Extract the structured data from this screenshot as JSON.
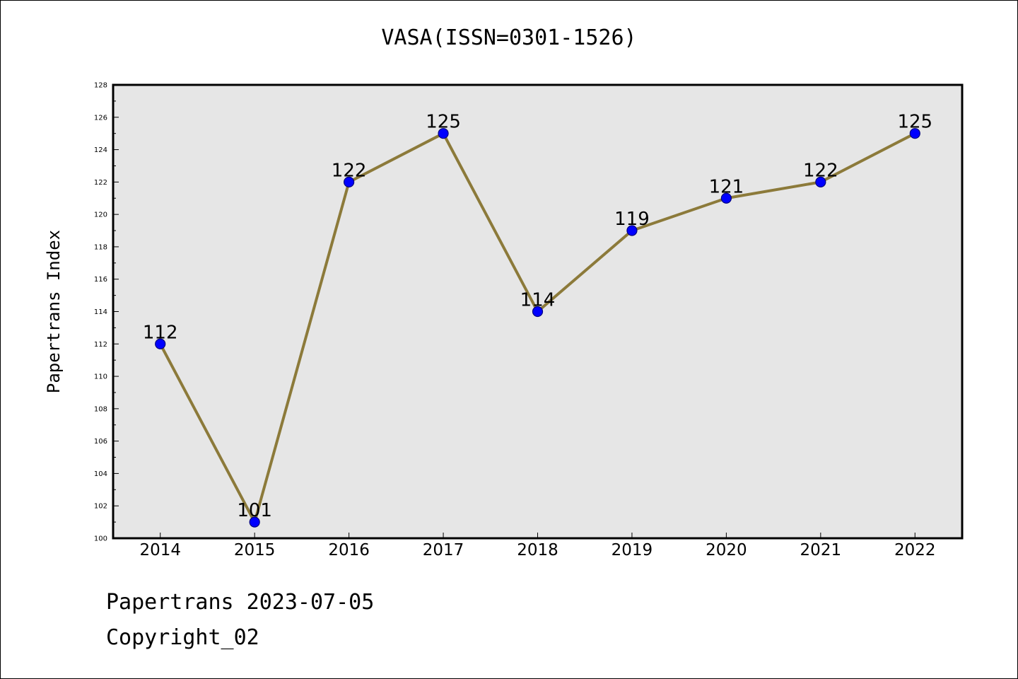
{
  "title": "VASA(ISSN=0301-1526)",
  "footer": {
    "line1": "Papertrans 2023-07-05",
    "line2": "Copyright_02"
  },
  "chart_data": {
    "type": "line",
    "title": "VASA(ISSN=0301-1526)",
    "xlabel": "",
    "ylabel": "Papertrans Index",
    "categories": [
      "2014",
      "2015",
      "2016",
      "2017",
      "2018",
      "2019",
      "2020",
      "2021",
      "2022"
    ],
    "series": [
      {
        "values": [
          112,
          101,
          122,
          125,
          114,
          119,
          121,
          122,
          125
        ]
      }
    ],
    "data_labels": [
      "112",
      "101",
      "122",
      "125",
      "114",
      "119",
      "121",
      "122",
      "125"
    ],
    "ylim": [
      100,
      128
    ],
    "y_ticks": [
      100,
      102,
      104,
      106,
      108,
      110,
      112,
      114,
      116,
      118,
      120,
      122,
      124,
      126,
      128
    ],
    "grid": false,
    "legend": "none",
    "colors": {
      "plot_background": "#e6e6e6",
      "line": "#8c7a3a",
      "marker_fill": "#0000ff",
      "marker_edge": "#000080"
    }
  }
}
